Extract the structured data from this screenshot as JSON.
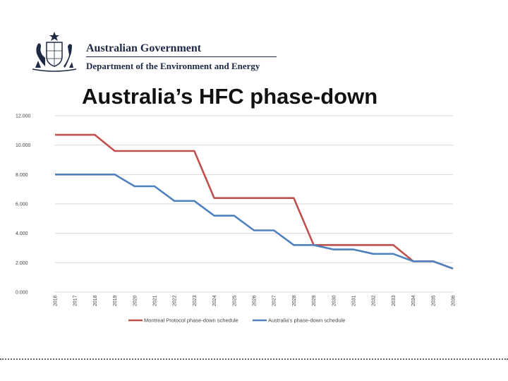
{
  "header": {
    "government": "Australian Government",
    "department": "Department of the Environment and Energy",
    "crest_icon": "coat-of-arms-icon"
  },
  "title": "Australia’s HFC phase-down",
  "chart_data": {
    "type": "line",
    "title": "Australia’s HFC phase-down",
    "xlabel": "",
    "ylabel": "",
    "categories": [
      "2016",
      "2017",
      "2018",
      "2019",
      "2020",
      "2021",
      "2022",
      "2023",
      "2024",
      "2025",
      "2026",
      "2027",
      "2028",
      "2029",
      "2030",
      "2031",
      "2032",
      "2033",
      "2034",
      "2035",
      "2036"
    ],
    "y_ticks": [
      "0.000",
      "2.000",
      "4.000",
      "6.000",
      "8.000",
      "10.000",
      "12.000"
    ],
    "ylim": [
      0,
      12
    ],
    "grid": true,
    "legend_position": "bottom",
    "series": [
      {
        "name": "Montreal Protocol phase-down schedule",
        "color": "#c0504d",
        "values": [
          10.7,
          10.7,
          10.7,
          9.6,
          9.6,
          9.6,
          9.6,
          9.6,
          6.4,
          6.4,
          6.4,
          6.4,
          6.4,
          3.2,
          3.2,
          3.2,
          3.2,
          3.2,
          2.1,
          2.1,
          1.6
        ]
      },
      {
        "name": "Australia's phase-down schedule",
        "color": "#4f81bd",
        "values": [
          8.0,
          8.0,
          8.0,
          8.0,
          7.2,
          7.2,
          6.2,
          6.2,
          5.2,
          5.2,
          4.2,
          4.2,
          3.2,
          3.2,
          2.9,
          2.9,
          2.6,
          2.6,
          2.1,
          2.1,
          1.6
        ]
      }
    ]
  }
}
